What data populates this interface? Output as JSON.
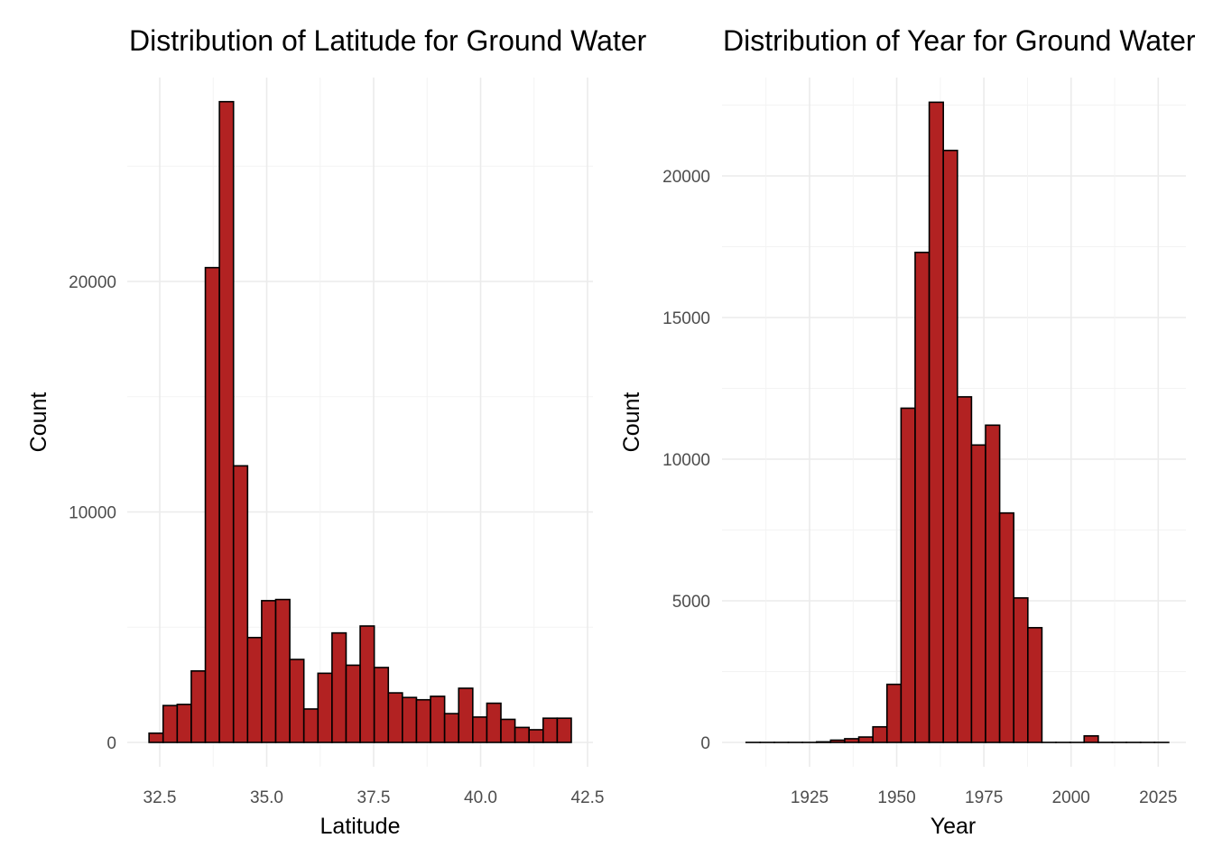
{
  "chart_data": [
    {
      "type": "bar",
      "subtype": "histogram",
      "title": "Distribution of Latitude for Ground Water",
      "xlabel": "Latitude",
      "ylabel": "Count",
      "xlim": [
        32.05,
        42.55
      ],
      "ylim": [
        0,
        28000
      ],
      "x_ticks": [
        32.5,
        35.0,
        37.5,
        40.0,
        42.5
      ],
      "x_tick_labels": [
        "32.5",
        "35.0",
        "37.5",
        "40.0",
        "42.5"
      ],
      "y_ticks": [
        0,
        10000,
        20000
      ],
      "y_tick_labels": [
        "0",
        "10000",
        "20000"
      ],
      "grid": true,
      "bar_color": "#b22222",
      "bar_edge_color": "#000000",
      "bin_start": 32.25,
      "bin_width": 0.329,
      "values": [
        400,
        1600,
        1650,
        3100,
        20600,
        27800,
        12000,
        4550,
        6150,
        6200,
        3600,
        1450,
        3000,
        4750,
        3350,
        5050,
        3250,
        2150,
        1950,
        1850,
        2000,
        1250,
        2350,
        1100,
        1700,
        1000,
        650,
        550,
        1050,
        1050
      ]
    },
    {
      "type": "bar",
      "subtype": "histogram",
      "title": "Distribution of Year for Ground Water",
      "xlabel": "Year",
      "ylabel": "Count",
      "xlim": [
        1901,
        2033
      ],
      "ylim": [
        0,
        22600
      ],
      "x_ticks": [
        1925,
        1950,
        1975,
        2000,
        2025
      ],
      "x_tick_labels": [
        "1925",
        "1950",
        "1975",
        "2000",
        "2025"
      ],
      "y_ticks": [
        0,
        5000,
        10000,
        15000,
        20000
      ],
      "y_tick_labels": [
        "0",
        "5000",
        "10000",
        "15000",
        "20000"
      ],
      "grid": true,
      "bar_color": "#b22222",
      "bar_edge_color": "#000000",
      "bin_start": 1906.8,
      "bin_width": 4.04,
      "values": [
        0,
        0,
        0,
        0,
        0,
        20,
        80,
        130,
        190,
        550,
        2050,
        11800,
        17300,
        22600,
        20900,
        12200,
        10500,
        11200,
        8100,
        5100,
        4050,
        0,
        0,
        0,
        230,
        0,
        0,
        0,
        0,
        0
      ]
    }
  ]
}
